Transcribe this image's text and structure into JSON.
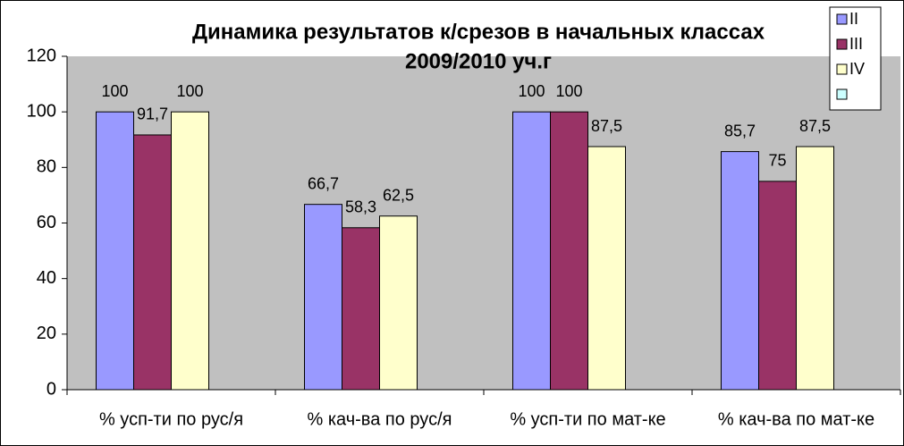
{
  "chart_data": {
    "type": "bar",
    "title": [
      "Динамика результатов к/срезов в начальных классах",
      "2009/2010 уч.г"
    ],
    "categories": [
      "% усп-ти по рус/я",
      "% кач-ва по рус/я",
      "% усп-ти по мат-ке",
      "% кач-ва по мат-ке"
    ],
    "series": [
      {
        "name": "II",
        "color": "#9999ff",
        "values": [
          100,
          66.7,
          100,
          85.7
        ],
        "value_labels": [
          "100",
          "66,7",
          "100",
          "85,7"
        ]
      },
      {
        "name": "III",
        "color": "#993366",
        "values": [
          91.7,
          58.3,
          100,
          75
        ],
        "value_labels": [
          "91,7",
          "58,3",
          "100",
          "75"
        ]
      },
      {
        "name": "IV",
        "color": "#ffffcc",
        "values": [
          100,
          62.5,
          87.5,
          87.5
        ],
        "value_labels": [
          "100",
          "62,5",
          "87,5",
          "87,5"
        ]
      },
      {
        "name": null,
        "color": "#ccffff",
        "values": [
          null,
          null,
          null,
          null
        ]
      }
    ],
    "ylim": [
      0,
      120
    ],
    "yticks": [
      0,
      20,
      40,
      60,
      80,
      100,
      120
    ],
    "grid": false,
    "legend": "top-right"
  }
}
